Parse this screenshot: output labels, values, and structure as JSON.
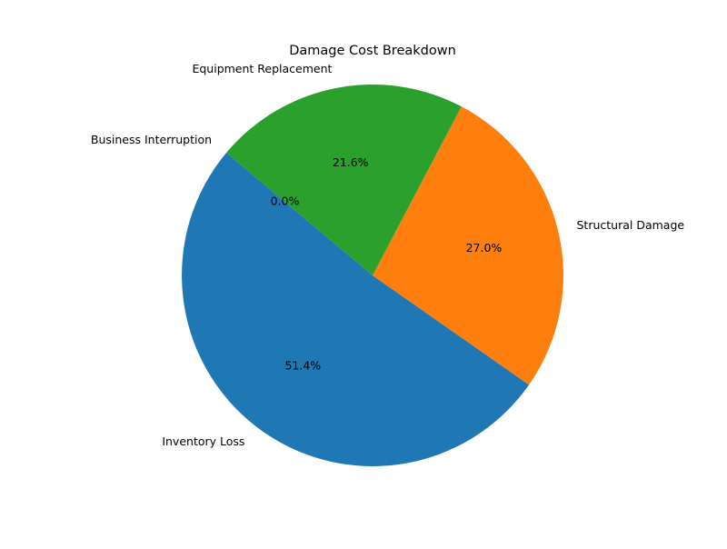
{
  "chart_data": {
    "type": "pie",
    "title": "Damage Cost Breakdown",
    "slices": [
      {
        "label": "Inventory Loss",
        "value": 51.4,
        "pct_label": "51.4%",
        "color": "#1f77b4"
      },
      {
        "label": "Structural Damage",
        "value": 27.0,
        "pct_label": "27.0%",
        "color": "#ff7f0e"
      },
      {
        "label": "Equipment Replacement",
        "value": 21.6,
        "pct_label": "21.6%",
        "color": "#2ca02c"
      },
      {
        "label": "Business Interruption",
        "value": 0.0,
        "pct_label": "0.0%",
        "color": "#d62728"
      }
    ],
    "start_angle_deg": 140,
    "direction": "counterclockwise",
    "legend": "none",
    "grid": false
  }
}
